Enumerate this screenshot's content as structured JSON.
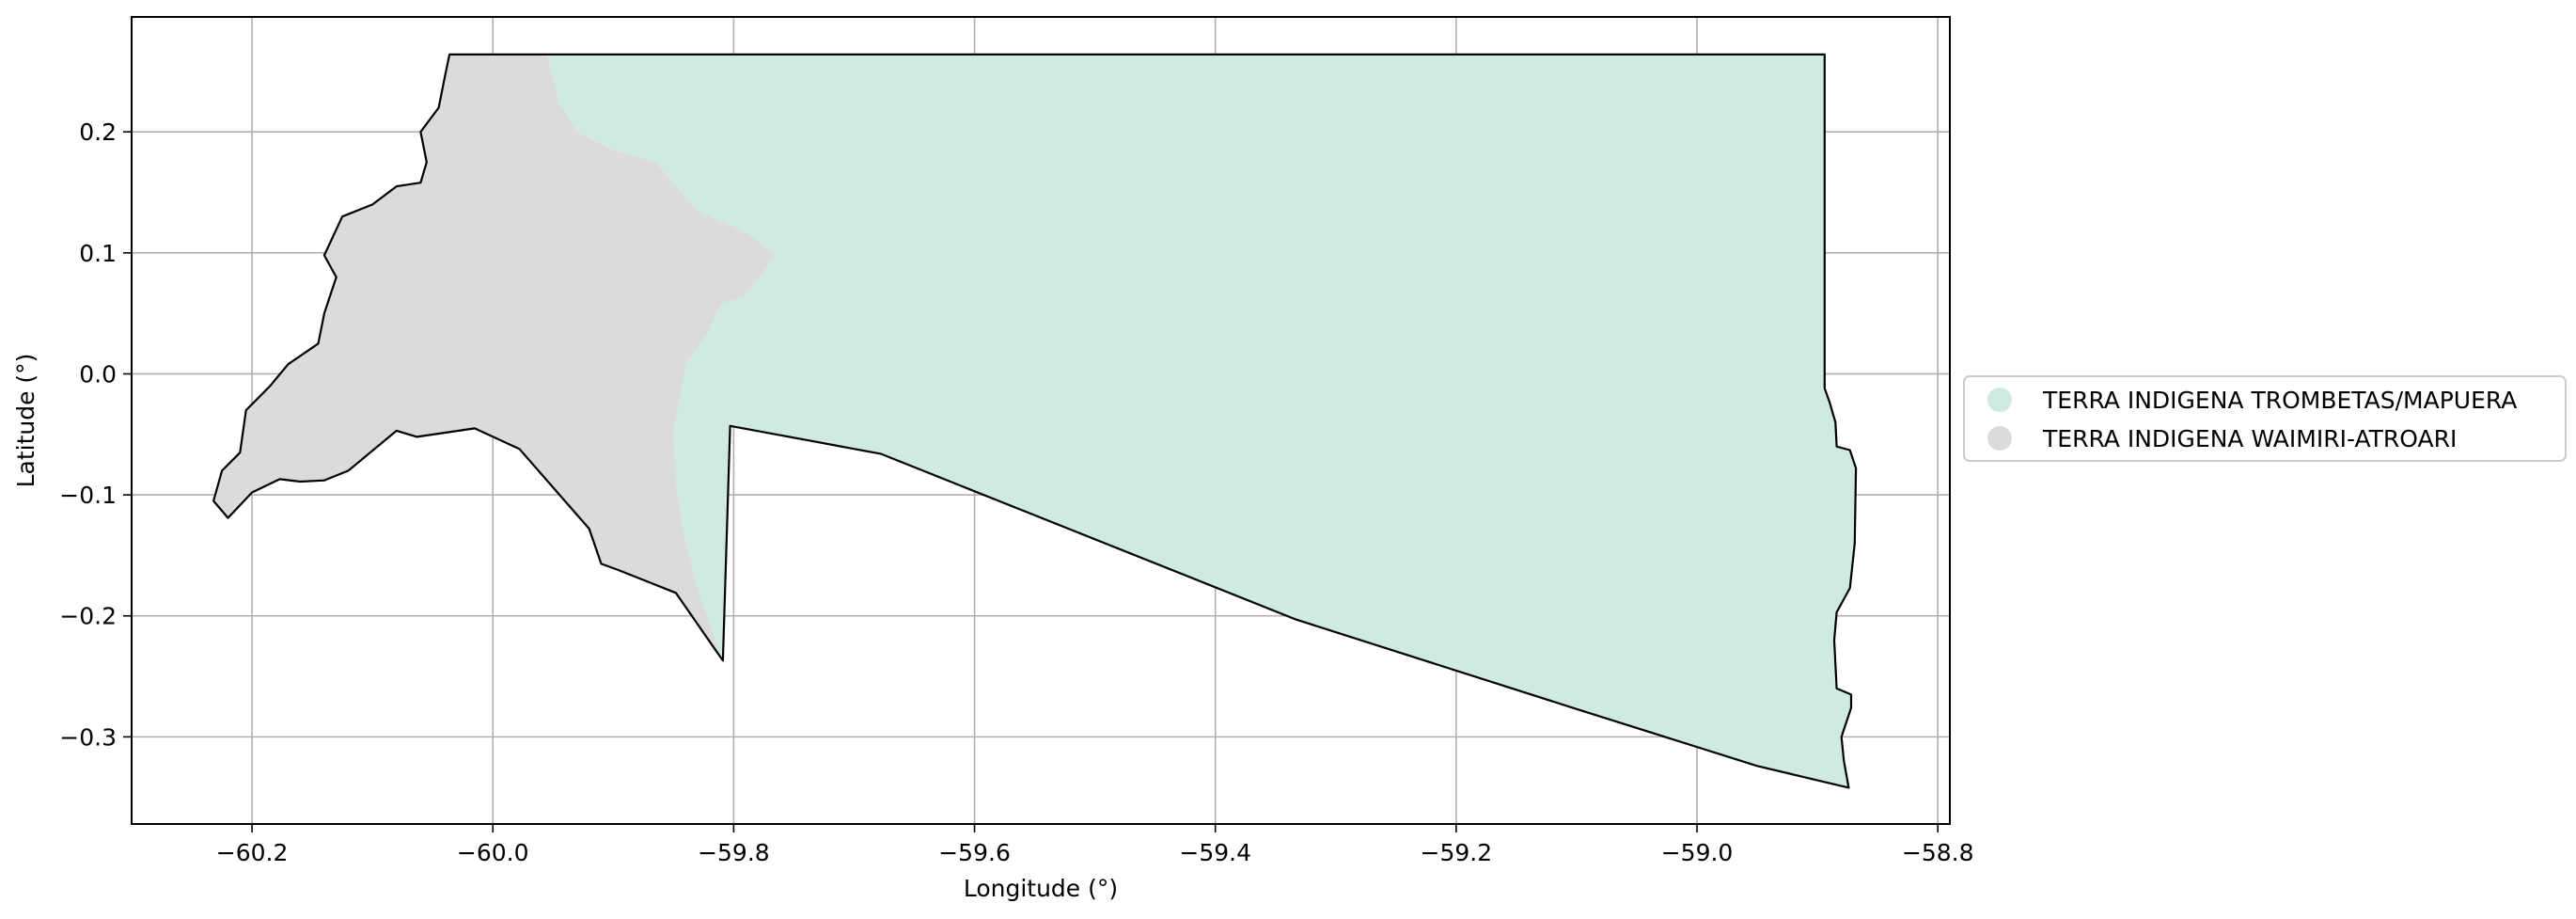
{
  "chart_data": {
    "type": "map",
    "xlabel": "Longitude (°)",
    "ylabel": "Latitude (°)",
    "xlim": [
      -60.3,
      -58.79
    ],
    "ylim": [
      -0.372,
      0.295
    ],
    "grid": true,
    "x_ticks": [
      -60.2,
      -60.0,
      -59.8,
      -59.6,
      -59.4,
      -59.2,
      -59.0,
      -58.8
    ],
    "y_ticks": [
      -0.3,
      -0.2,
      -0.1,
      0.0,
      0.1,
      0.2
    ],
    "x_tick_labels": [
      "−60.2",
      "−60.0",
      "−59.8",
      "−59.6",
      "−59.4",
      "−59.2",
      "−59.0",
      "−58.8"
    ],
    "y_tick_labels": [
      "−0.3",
      "−0.2",
      "−0.1",
      "0.0",
      "0.1",
      "0.2"
    ],
    "legend_position": "right",
    "series": [
      {
        "name": "TERRA INDIGENA TROMBETAS/MAPUERA",
        "color": "#cfeadf",
        "polygon": [
          [
            -59.955,
            0.264
          ],
          [
            -58.894,
            0.264
          ],
          [
            -58.894,
            -0.012
          ],
          [
            -58.89,
            -0.023
          ],
          [
            -58.885,
            -0.04
          ],
          [
            -58.884,
            -0.06
          ],
          [
            -58.873,
            -0.063
          ],
          [
            -58.868,
            -0.078
          ],
          [
            -58.869,
            -0.14
          ],
          [
            -58.873,
            -0.177
          ],
          [
            -58.884,
            -0.197
          ],
          [
            -58.886,
            -0.22
          ],
          [
            -58.884,
            -0.26
          ],
          [
            -58.872,
            -0.265
          ],
          [
            -58.872,
            -0.276
          ],
          [
            -58.88,
            -0.3
          ],
          [
            -58.878,
            -0.32
          ],
          [
            -58.874,
            -0.342
          ],
          [
            -58.95,
            -0.324
          ],
          [
            -59.1,
            -0.277
          ],
          [
            -59.333,
            -0.203
          ],
          [
            -59.678,
            -0.066
          ],
          [
            -59.803,
            -0.043
          ],
          [
            -59.809,
            -0.237
          ],
          [
            -59.826,
            -0.19
          ],
          [
            -59.84,
            -0.14
          ],
          [
            -59.848,
            -0.09
          ],
          [
            -59.85,
            -0.048
          ],
          [
            -59.843,
            -0.012
          ],
          [
            -59.84,
            0.008
          ],
          [
            -59.822,
            0.033
          ],
          [
            -59.81,
            0.058
          ],
          [
            -59.79,
            0.065
          ],
          [
            -59.765,
            0.098
          ],
          [
            -59.787,
            0.115
          ],
          [
            -59.83,
            0.135
          ],
          [
            -59.865,
            0.175
          ],
          [
            -59.9,
            0.185
          ],
          [
            -59.93,
            0.2
          ],
          [
            -59.945,
            0.225
          ]
        ]
      },
      {
        "name": "TERRA INDIGENA WAIMIRI-ATROARI",
        "color": "#dbdbdb",
        "polygon": [
          [
            -60.036,
            0.264
          ],
          [
            -59.955,
            0.264
          ],
          [
            -59.945,
            0.225
          ],
          [
            -59.93,
            0.2
          ],
          [
            -59.9,
            0.185
          ],
          [
            -59.865,
            0.175
          ],
          [
            -59.83,
            0.135
          ],
          [
            -59.787,
            0.115
          ],
          [
            -59.765,
            0.098
          ],
          [
            -59.79,
            0.065
          ],
          [
            -59.81,
            0.058
          ],
          [
            -59.822,
            0.033
          ],
          [
            -59.84,
            0.008
          ],
          [
            -59.843,
            -0.012
          ],
          [
            -59.85,
            -0.048
          ],
          [
            -59.848,
            -0.09
          ],
          [
            -59.84,
            -0.14
          ],
          [
            -59.826,
            -0.19
          ],
          [
            -59.809,
            -0.237
          ],
          [
            -59.848,
            -0.181
          ],
          [
            -59.896,
            -0.162
          ],
          [
            -59.91,
            -0.157
          ],
          [
            -59.92,
            -0.128
          ],
          [
            -59.978,
            -0.062
          ],
          [
            -60.015,
            -0.045
          ],
          [
            -60.063,
            -0.052
          ],
          [
            -60.08,
            -0.047
          ],
          [
            -60.12,
            -0.08
          ],
          [
            -60.14,
            -0.088
          ],
          [
            -60.16,
            -0.089
          ],
          [
            -60.177,
            -0.087
          ],
          [
            -60.2,
            -0.098
          ],
          [
            -60.22,
            -0.119
          ],
          [
            -60.232,
            -0.105
          ],
          [
            -60.225,
            -0.08
          ],
          [
            -60.21,
            -0.065
          ],
          [
            -60.205,
            -0.03
          ],
          [
            -60.185,
            -0.01
          ],
          [
            -60.17,
            0.008
          ],
          [
            -60.145,
            0.025
          ],
          [
            -60.14,
            0.05
          ],
          [
            -60.13,
            0.08
          ],
          [
            -60.14,
            0.098
          ],
          [
            -60.125,
            0.13
          ],
          [
            -60.1,
            0.14
          ],
          [
            -60.08,
            0.155
          ],
          [
            -60.06,
            0.158
          ],
          [
            -60.055,
            0.175
          ],
          [
            -60.06,
            0.2
          ],
          [
            -60.045,
            0.22
          ],
          [
            -60.04,
            0.245
          ]
        ]
      }
    ],
    "outline": [
      [
        -60.036,
        0.264
      ],
      [
        -58.894,
        0.264
      ],
      [
        -58.894,
        -0.012
      ],
      [
        -58.89,
        -0.023
      ],
      [
        -58.885,
        -0.04
      ],
      [
        -58.884,
        -0.06
      ],
      [
        -58.873,
        -0.063
      ],
      [
        -58.868,
        -0.078
      ],
      [
        -58.869,
        -0.14
      ],
      [
        -58.873,
        -0.177
      ],
      [
        -58.884,
        -0.197
      ],
      [
        -58.886,
        -0.22
      ],
      [
        -58.884,
        -0.26
      ],
      [
        -58.872,
        -0.265
      ],
      [
        -58.872,
        -0.276
      ],
      [
        -58.88,
        -0.3
      ],
      [
        -58.878,
        -0.32
      ],
      [
        -58.874,
        -0.342
      ],
      [
        -58.95,
        -0.324
      ],
      [
        -59.1,
        -0.277
      ],
      [
        -59.333,
        -0.203
      ],
      [
        -59.678,
        -0.066
      ],
      [
        -59.803,
        -0.043
      ],
      [
        -59.809,
        -0.237
      ],
      [
        -59.848,
        -0.181
      ],
      [
        -59.896,
        -0.162
      ],
      [
        -59.91,
        -0.157
      ],
      [
        -59.92,
        -0.128
      ],
      [
        -59.978,
        -0.062
      ],
      [
        -60.015,
        -0.045
      ],
      [
        -60.063,
        -0.052
      ],
      [
        -60.08,
        -0.047
      ],
      [
        -60.12,
        -0.08
      ],
      [
        -60.14,
        -0.088
      ],
      [
        -60.16,
        -0.089
      ],
      [
        -60.177,
        -0.087
      ],
      [
        -60.2,
        -0.098
      ],
      [
        -60.22,
        -0.119
      ],
      [
        -60.232,
        -0.105
      ],
      [
        -60.225,
        -0.08
      ],
      [
        -60.21,
        -0.065
      ],
      [
        -60.205,
        -0.03
      ],
      [
        -60.185,
        -0.01
      ],
      [
        -60.17,
        0.008
      ],
      [
        -60.145,
        0.025
      ],
      [
        -60.14,
        0.05
      ],
      [
        -60.13,
        0.08
      ],
      [
        -60.14,
        0.098
      ],
      [
        -60.125,
        0.13
      ],
      [
        -60.1,
        0.14
      ],
      [
        -60.08,
        0.155
      ],
      [
        -60.06,
        0.158
      ],
      [
        -60.055,
        0.175
      ],
      [
        -60.06,
        0.2
      ],
      [
        -60.045,
        0.22
      ],
      [
        -60.04,
        0.245
      ]
    ]
  }
}
